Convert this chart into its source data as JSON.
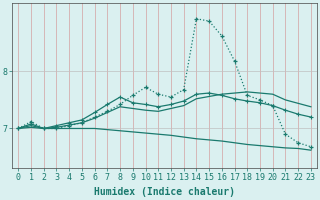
{
  "xlabel": "Humidex (Indice chaleur)",
  "bg_color": "#daf0f0",
  "grid_color_v": "#d4a0a0",
  "grid_color_h": "#c0c0c0",
  "line_color": "#1a7a6e",
  "x_values": [
    0,
    1,
    2,
    3,
    4,
    5,
    6,
    7,
    8,
    9,
    10,
    11,
    12,
    13,
    14,
    15,
    16,
    17,
    18,
    19,
    20,
    21,
    22,
    23
  ],
  "line_dotted": [
    7.0,
    7.12,
    7.0,
    7.0,
    7.05,
    7.1,
    7.2,
    7.3,
    7.42,
    7.58,
    7.72,
    7.6,
    7.55,
    7.68,
    8.92,
    8.88,
    8.62,
    8.18,
    7.58,
    7.5,
    7.4,
    6.9,
    6.75,
    6.68
  ],
  "line_mid1": [
    7.0,
    7.08,
    7.0,
    7.05,
    7.1,
    7.15,
    7.28,
    7.42,
    7.55,
    7.45,
    7.42,
    7.38,
    7.42,
    7.48,
    7.6,
    7.62,
    7.58,
    7.52,
    7.48,
    7.45,
    7.4,
    7.32,
    7.25,
    7.2
  ],
  "line_mid2": [
    7.0,
    7.05,
    7.0,
    7.02,
    7.06,
    7.1,
    7.18,
    7.28,
    7.38,
    7.35,
    7.32,
    7.3,
    7.35,
    7.4,
    7.52,
    7.56,
    7.6,
    7.62,
    7.64,
    7.62,
    7.6,
    7.5,
    7.44,
    7.38
  ],
  "line_flat": [
    7.0,
    7.02,
    7.0,
    7.0,
    7.0,
    7.0,
    7.0,
    6.98,
    6.96,
    6.94,
    6.92,
    6.9,
    6.88,
    6.85,
    6.82,
    6.8,
    6.78,
    6.75,
    6.72,
    6.7,
    6.68,
    6.66,
    6.65,
    6.62
  ],
  "yticks": [
    7,
    8
  ],
  "ylim": [
    6.3,
    9.2
  ],
  "xlim": [
    -0.5,
    23.5
  ]
}
